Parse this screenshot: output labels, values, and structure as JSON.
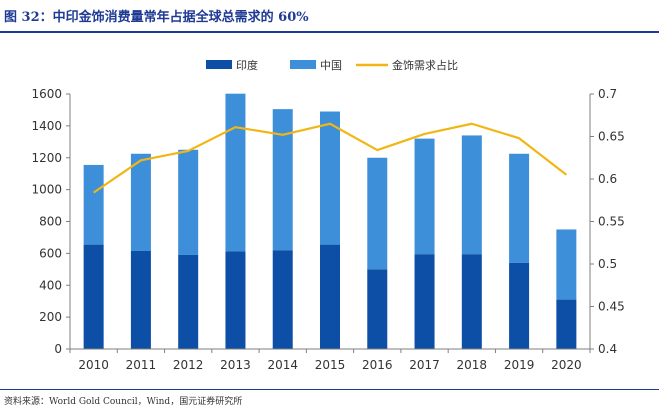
{
  "header": {
    "title": "图 32：中印金饰消费量常年占据全球总需求的 60%"
  },
  "footer": {
    "source": "资料来源：World Gold Council，Wind，国元证券研究所"
  },
  "colors": {
    "india": "#0d4ea6",
    "china": "#3d8fd9",
    "share": "#f2b614",
    "title": "#1f3a93"
  },
  "chart_data": {
    "type": "bar",
    "stacked": true,
    "categories": [
      "2010",
      "2011",
      "2012",
      "2013",
      "2014",
      "2015",
      "2016",
      "2017",
      "2018",
      "2019",
      "2020"
    ],
    "series": [
      {
        "name": "印度",
        "axis": "left",
        "values": [
          655,
          615,
          590,
          612,
          620,
          655,
          500,
          595,
          595,
          540,
          310
        ]
      },
      {
        "name": "中国",
        "axis": "left",
        "values": [
          500,
          610,
          660,
          990,
          885,
          835,
          700,
          725,
          745,
          685,
          440
        ]
      },
      {
        "name": "金饰需求占比",
        "type": "line",
        "axis": "right",
        "values": [
          0.584,
          0.622,
          0.633,
          0.661,
          0.652,
          0.665,
          0.634,
          0.653,
          0.665,
          0.648,
          0.605
        ]
      }
    ],
    "y_left": {
      "lim": [
        0,
        1600
      ],
      "ticks": [
        "0",
        "200",
        "400",
        "600",
        "800",
        "1000",
        "1200",
        "1400",
        "1600"
      ]
    },
    "y_right": {
      "lim": [
        0.4,
        0.7
      ],
      "ticks": [
        "0.4",
        "0.45",
        "0.5",
        "0.55",
        "0.6",
        "0.65",
        "0.7"
      ]
    },
    "legend": {
      "position": "top-center"
    },
    "grid": false
  }
}
